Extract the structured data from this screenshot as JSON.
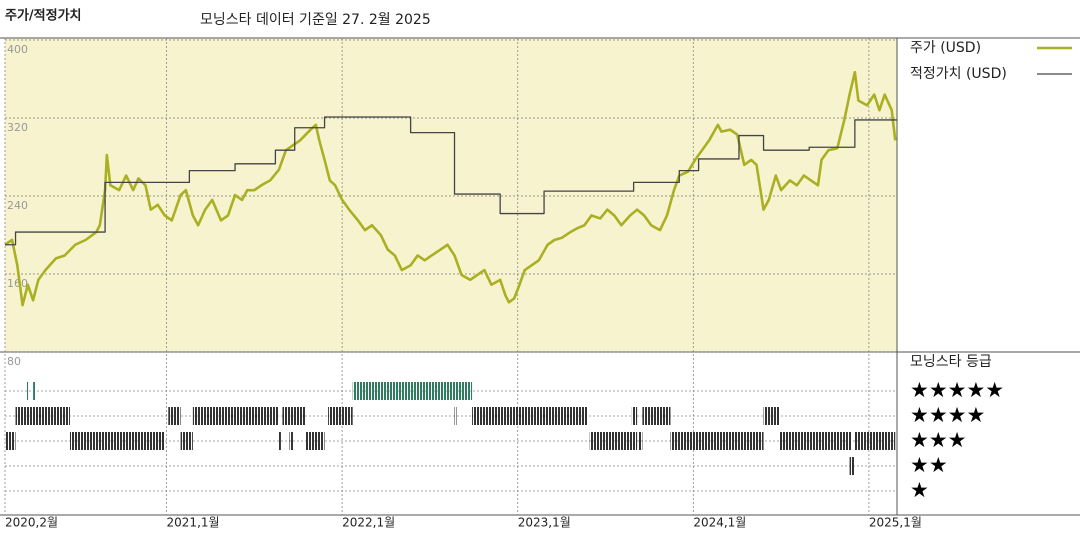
{
  "chart_data": {
    "type": "line",
    "title": "주가/적정가치",
    "subtitle": "모닝스타 데이터 기준일 27. 2월 2025",
    "xlim": [
      2020.08,
      2025.16
    ],
    "xticks": [
      {
        "value": 2020.08,
        "label": "2020,2월"
      },
      {
        "value": 2021.0,
        "label": "2021,1월"
      },
      {
        "value": 2022.0,
        "label": "2022,1월"
      },
      {
        "value": 2023.0,
        "label": "2023,1월"
      },
      {
        "value": 2024.0,
        "label": "2024,1월"
      },
      {
        "value": 2025.0,
        "label": "2025,1월"
      }
    ],
    "ylim": [
      80,
      400
    ],
    "yticks": [
      80,
      160,
      240,
      320,
      400
    ],
    "grid": true,
    "legend": "right",
    "series": [
      {
        "name": "주가 (USD)",
        "color": "#a9b023",
        "x": [
          2020.08,
          2020.12,
          2020.15,
          2020.18,
          2020.21,
          2020.24,
          2020.27,
          2020.31,
          2020.37,
          2020.42,
          2020.48,
          2020.54,
          2020.6,
          2020.62,
          2020.65,
          2020.66,
          2020.68,
          2020.73,
          2020.77,
          2020.81,
          2020.84,
          2020.88,
          2020.91,
          2020.95,
          2020.99,
          2021.03,
          2021.08,
          2021.11,
          2021.15,
          2021.18,
          2021.22,
          2021.26,
          2021.31,
          2021.35,
          2021.39,
          2021.43,
          2021.46,
          2021.5,
          2021.54,
          2021.59,
          2021.64,
          2021.68,
          2021.72,
          2021.76,
          2021.82,
          2021.85,
          2021.87,
          2021.9,
          2021.93,
          2021.96,
          2022.0,
          2022.04,
          2022.09,
          2022.13,
          2022.17,
          2022.22,
          2022.26,
          2022.3,
          2022.34,
          2022.39,
          2022.43,
          2022.47,
          2022.51,
          2022.56,
          2022.6,
          2022.64,
          2022.68,
          2022.73,
          2022.77,
          2022.81,
          2022.85,
          2022.9,
          2022.93,
          2022.95,
          2022.98,
          2023.01,
          2023.04,
          2023.08,
          2023.12,
          2023.17,
          2023.21,
          2023.25,
          2023.3,
          2023.34,
          2023.38,
          2023.42,
          2023.47,
          2023.51,
          2023.55,
          2023.59,
          2023.64,
          2023.68,
          2023.72,
          2023.76,
          2023.81,
          2023.85,
          2023.89,
          2023.92,
          2023.97,
          2024.01,
          2024.05,
          2024.09,
          2024.14,
          2024.16,
          2024.21,
          2024.25,
          2024.29,
          2024.33,
          2024.36,
          2024.4,
          2024.43,
          2024.47,
          2024.5,
          2024.55,
          2024.59,
          2024.63,
          2024.67,
          2024.71,
          2024.73,
          2024.77,
          2024.82,
          2024.86,
          2024.89,
          2024.92,
          2024.94,
          2024.99,
          2025.03,
          2025.06,
          2025.09,
          2025.13,
          2025.15
        ],
        "values": [
          190,
          195,
          169,
          128,
          149,
          133,
          154,
          164,
          176,
          179,
          190,
          195,
          203,
          210,
          246,
          282,
          251,
          246,
          261,
          246,
          258,
          251,
          226,
          231,
          220,
          215,
          241,
          246,
          220,
          210,
          226,
          236,
          215,
          220,
          241,
          236,
          246,
          246,
          251,
          256,
          267,
          287,
          292,
          297,
          308,
          313,
          297,
          277,
          256,
          251,
          236,
          226,
          215,
          205,
          210,
          200,
          185,
          179,
          164,
          169,
          179,
          174,
          179,
          185,
          190,
          179,
          159,
          154,
          159,
          164,
          149,
          154,
          138,
          131,
          135,
          149,
          164,
          169,
          174,
          190,
          195,
          197,
          203,
          207,
          210,
          220,
          217,
          226,
          220,
          210,
          220,
          226,
          220,
          210,
          205,
          220,
          246,
          261,
          265,
          277,
          287,
          297,
          313,
          306,
          308,
          303,
          272,
          277,
          272,
          226,
          236,
          261,
          246,
          256,
          251,
          261,
          256,
          251,
          277,
          287,
          289,
          318,
          344,
          367,
          338,
          333,
          344,
          328,
          344,
          328,
          297
        ]
      },
      {
        "name": "적정가치 (USD)",
        "color": "#444444",
        "line_style": "step",
        "x": [
          2020.08,
          2020.14,
          2020.65,
          2021.13,
          2021.39,
          2021.62,
          2021.73,
          2021.9,
          2022.39,
          2022.64,
          2022.9,
          2023.15,
          2023.66,
          2023.92,
          2024.03,
          2024.26,
          2024.4,
          2024.66,
          2024.92
        ],
        "values": [
          190,
          203,
          254,
          266,
          273,
          287,
          310,
          321,
          305,
          242,
          222,
          245,
          254,
          266,
          278,
          302,
          287,
          290,
          318
        ]
      }
    ],
    "rating_title": "모닝스타 등급",
    "rating_rows": [
      {
        "label": "★★★★★",
        "stars": 5,
        "color": "#2f7d60"
      },
      {
        "label": "★★★★",
        "stars": 4,
        "color": "#333333"
      },
      {
        "label": "★★★",
        "stars": 3,
        "color": "#333333"
      },
      {
        "label": "★★",
        "stars": 2,
        "color": "#333333"
      },
      {
        "label": "★",
        "stars": 1,
        "color": "#333333"
      }
    ],
    "rating_periods": [
      {
        "stars": 5,
        "start": 2020.2,
        "end": 2020.21
      },
      {
        "stars": 5,
        "start": 2020.24,
        "end": 2020.25
      },
      {
        "stars": 5,
        "start": 2022.06,
        "end": 2022.74
      },
      {
        "stars": 4,
        "start": 2020.14,
        "end": 2020.45
      },
      {
        "stars": 4,
        "start": 2021.01,
        "end": 2021.08
      },
      {
        "stars": 4,
        "start": 2021.15,
        "end": 2021.64
      },
      {
        "stars": 4,
        "start": 2021.66,
        "end": 2021.79
      },
      {
        "stars": 4,
        "start": 2021.92,
        "end": 2022.06
      },
      {
        "stars": 4,
        "start": 2022.64,
        "end": 2022.65
      },
      {
        "stars": 4,
        "start": 2022.74,
        "end": 2023.4
      },
      {
        "stars": 4,
        "start": 2023.65,
        "end": 2023.68
      },
      {
        "stars": 4,
        "start": 2023.71,
        "end": 2023.87
      },
      {
        "stars": 4,
        "start": 2024.4,
        "end": 2024.49
      },
      {
        "stars": 3,
        "start": 2020.08,
        "end": 2020.14
      },
      {
        "stars": 3,
        "start": 2020.45,
        "end": 2020.99
      },
      {
        "stars": 3,
        "start": 2021.08,
        "end": 2021.15
      },
      {
        "stars": 3,
        "start": 2021.64,
        "end": 2021.65
      },
      {
        "stars": 3,
        "start": 2021.7,
        "end": 2021.72
      },
      {
        "stars": 3,
        "start": 2021.79,
        "end": 2021.9
      },
      {
        "stars": 3,
        "start": 2023.41,
        "end": 2023.68
      },
      {
        "stars": 3,
        "start": 2023.69,
        "end": 2023.71
      },
      {
        "stars": 3,
        "start": 2023.87,
        "end": 2024.4
      },
      {
        "stars": 3,
        "start": 2024.49,
        "end": 2024.9
      },
      {
        "stars": 3,
        "start": 2024.92,
        "end": 2025.15
      },
      {
        "stars": 2,
        "start": 2024.89,
        "end": 2024.92
      }
    ]
  }
}
